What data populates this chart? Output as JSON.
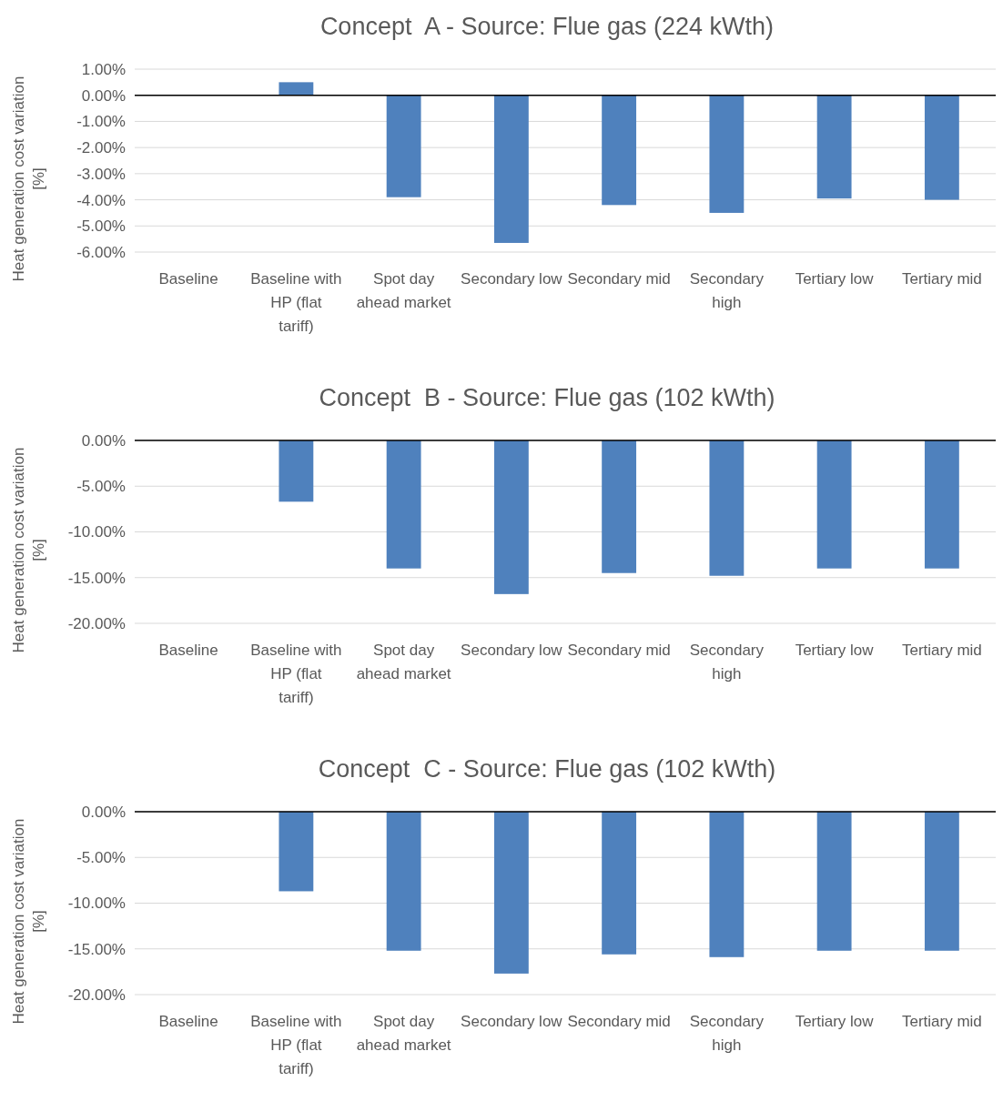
{
  "chart_data": [
    {
      "type": "bar",
      "title": "Concept  A - Source: Flue gas (224 kWth)",
      "ylabel": "Heat generation cost variation [%]",
      "categories": [
        "Baseline",
        "Baseline with HP (flat tariff)",
        "Spot day ahead market",
        "Secondary low",
        "Secondary mid",
        "Secondary high",
        "Tertiary low",
        "Tertiary mid"
      ],
      "values": [
        0,
        0.5,
        -3.9,
        -5.65,
        -4.2,
        -4.5,
        -3.95,
        -4.0
      ],
      "color": "#4f81bd",
      "ylim": [
        -6,
        1
      ],
      "yticks": [
        {
          "value": 1,
          "label": "1.00%"
        },
        {
          "value": 0,
          "label": "0.00%"
        },
        {
          "value": -1,
          "label": "-1.00%"
        },
        {
          "value": -2,
          "label": "-2.00%"
        },
        {
          "value": -3,
          "label": "-3.00%"
        },
        {
          "value": -4,
          "label": "-4.00%"
        },
        {
          "value": -5,
          "label": "-5.00%"
        },
        {
          "value": -6,
          "label": "-6.00%"
        }
      ],
      "grid": "y"
    },
    {
      "type": "bar",
      "title": "Concept  B - Source: Flue gas (102 kWth)",
      "ylabel": "Heat generation cost variation [%]",
      "categories": [
        "Baseline",
        "Baseline with HP (flat tariff)",
        "Spot day ahead market",
        "Secondary low",
        "Secondary mid",
        "Secondary high",
        "Tertiary low",
        "Tertiary mid"
      ],
      "values": [
        0,
        -6.7,
        -14.0,
        -16.8,
        -14.5,
        -14.8,
        -14.0,
        -14.0
      ],
      "color": "#4f81bd",
      "ylim": [
        -20,
        0
      ],
      "yticks": [
        {
          "value": 0,
          "label": "0.00%"
        },
        {
          "value": -5,
          "label": "-5.00%"
        },
        {
          "value": -10,
          "label": "-10.00%"
        },
        {
          "value": -15,
          "label": "-15.00%"
        },
        {
          "value": -20,
          "label": "-20.00%"
        }
      ],
      "grid": "y"
    },
    {
      "type": "bar",
      "title": "Concept  C - Source: Flue gas (102 kWth)",
      "ylabel": "Heat generation cost variation [%]",
      "categories": [
        "Baseline",
        "Baseline with HP (flat tariff)",
        "Spot day ahead market",
        "Secondary low",
        "Secondary mid",
        "Secondary high",
        "Tertiary low",
        "Tertiary mid"
      ],
      "values": [
        0,
        -8.7,
        -15.2,
        -17.7,
        -15.6,
        -15.9,
        -15.2,
        -15.2
      ],
      "color": "#4f81bd",
      "ylim": [
        -20,
        0
      ],
      "yticks": [
        {
          "value": 0,
          "label": "0.00%"
        },
        {
          "value": -5,
          "label": "-5.00%"
        },
        {
          "value": -10,
          "label": "-10.00%"
        },
        {
          "value": -15,
          "label": "-15.00%"
        },
        {
          "value": -20,
          "label": "-20.00%"
        }
      ],
      "grid": "y"
    }
  ]
}
